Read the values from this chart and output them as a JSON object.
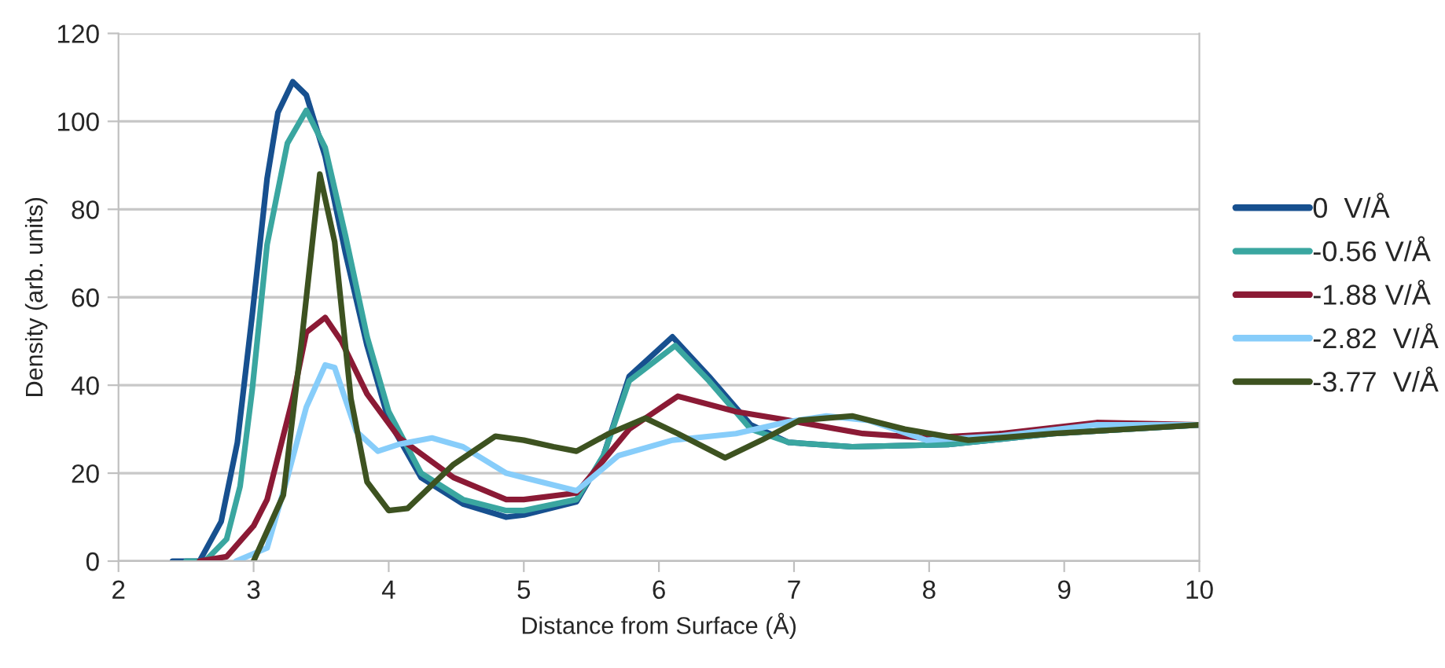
{
  "chart_data": {
    "type": "line",
    "xlabel": "Distance from Surface (Å)",
    "ylabel": "Density (arb. units)",
    "xlim": [
      2,
      10
    ],
    "xticks": [
      2,
      3,
      4,
      5,
      6,
      7,
      8,
      9,
      10
    ],
    "ylim": [
      0,
      120
    ],
    "yticks": [
      0,
      20,
      40,
      60,
      80,
      100,
      120
    ],
    "grid": "y",
    "legend": "right",
    "marker": "none",
    "line_style": "solid",
    "series": [
      {
        "name": "0  V/Å",
        "color": "#17508f",
        "x": [
          2.4,
          2.6,
          2.76,
          2.88,
          2.99,
          3.1,
          3.18,
          3.29,
          3.39,
          3.53,
          3.68,
          3.84,
          4.0,
          4.24,
          4.55,
          4.87,
          5.0,
          5.39,
          5.59,
          5.78,
          6.1,
          6.37,
          6.68,
          6.96,
          7.43,
          8.14,
          8.92,
          10.0
        ],
        "values": [
          0,
          0,
          9,
          27,
          56,
          87,
          102,
          109,
          106,
          92,
          70,
          49,
          32,
          19,
          13,
          10,
          10.5,
          13.5,
          24,
          42,
          51,
          42,
          31,
          27,
          26,
          26.5,
          29,
          31
        ]
      },
      {
        "name": "-0.56 V/Å",
        "color": "#3aa6a0",
        "x": [
          2.5,
          2.64,
          2.8,
          2.9,
          2.99,
          3.1,
          3.25,
          3.39,
          3.53,
          3.68,
          3.84,
          4.0,
          4.24,
          4.55,
          4.87,
          5.0,
          5.39,
          5.59,
          5.78,
          6.12,
          6.37,
          6.68,
          6.96,
          7.43,
          8.14,
          8.92,
          10.0
        ],
        "values": [
          0,
          0,
          5,
          17,
          39,
          72,
          95,
          102.5,
          94,
          74,
          51,
          34,
          20,
          14,
          11.5,
          11.5,
          14,
          24,
          41,
          49,
          41,
          30,
          27,
          26,
          26.5,
          29,
          31
        ]
      },
      {
        "name": "-1.88 V/Å",
        "color": "#8b1a35",
        "x": [
          2.6,
          2.8,
          3.0,
          3.1,
          3.29,
          3.39,
          3.53,
          3.65,
          3.84,
          4.08,
          4.48,
          4.87,
          5.0,
          5.39,
          5.78,
          6.14,
          6.57,
          6.96,
          7.51,
          7.98,
          8.53,
          9.24,
          10.0
        ],
        "values": [
          0,
          1,
          8,
          14,
          37,
          52,
          55.4,
          50,
          38,
          28,
          19,
          14,
          14,
          15.5,
          30,
          37.5,
          34,
          32,
          29,
          28,
          29,
          31.5,
          31
        ]
      },
      {
        "name": "-2.82  V/Å",
        "color": "#87cdfa",
        "x": [
          2.87,
          3.1,
          3.25,
          3.39,
          3.53,
          3.6,
          3.76,
          3.92,
          4.08,
          4.32,
          4.55,
          4.87,
          5.0,
          5.39,
          5.7,
          6.1,
          6.57,
          6.96,
          7.24,
          7.55,
          7.98,
          8.53,
          9.24,
          10.0
        ],
        "values": [
          0,
          3,
          19,
          35,
          44.6,
          44,
          29.5,
          25,
          26.6,
          28,
          26,
          20,
          19,
          16,
          24,
          27.5,
          29,
          31.7,
          33,
          32,
          27.5,
          28.5,
          31,
          31
        ]
      },
      {
        "name": "-3.77  V/Å",
        "color": "#3d5220",
        "x": [
          3.0,
          3.22,
          3.35,
          3.49,
          3.6,
          3.72,
          3.84,
          4.0,
          4.14,
          4.48,
          4.79,
          5.0,
          5.22,
          5.39,
          5.63,
          5.9,
          6.14,
          6.49,
          6.76,
          7.04,
          7.43,
          7.82,
          8.29,
          8.92,
          10.0
        ],
        "values": [
          0,
          15,
          48.5,
          88,
          72.6,
          37,
          18,
          11.5,
          12,
          22,
          28.4,
          27.5,
          26,
          25,
          29,
          32.5,
          29,
          23.5,
          27.5,
          32,
          33,
          30,
          27.5,
          29,
          31
        ]
      }
    ]
  }
}
